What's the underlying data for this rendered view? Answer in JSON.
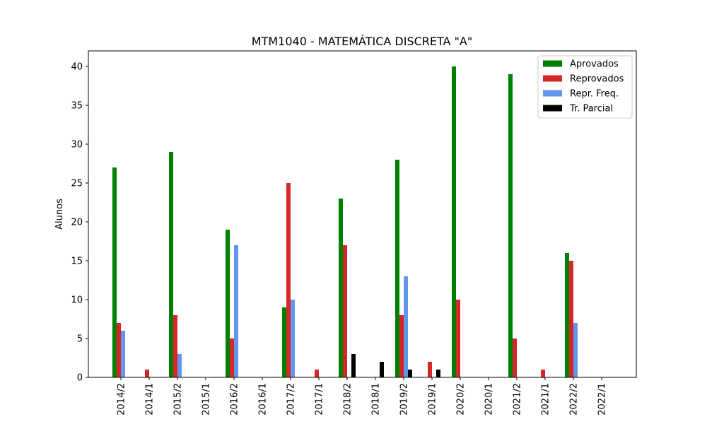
{
  "chart_data": {
    "type": "bar",
    "title": "MTM1040 - MATEMÁTICA DISCRETA \"A\"",
    "xlabel": "",
    "ylabel": "Alunos",
    "ylim": [
      0,
      42
    ],
    "yticks": [
      0,
      5,
      10,
      15,
      20,
      25,
      30,
      35,
      40
    ],
    "grid": false,
    "legend_position": "top-right",
    "categories": [
      "2014/2",
      "2014/1",
      "2015/2",
      "2015/1",
      "2016/2",
      "2016/1",
      "2017/2",
      "2017/1",
      "2018/2",
      "2018/1",
      "2019/2",
      "2019/1",
      "2020/2",
      "2020/1",
      "2021/2",
      "2021/1",
      "2022/2",
      "2022/1"
    ],
    "series": [
      {
        "name": "Aprovados",
        "color": "#008000",
        "values": [
          27,
          0,
          29,
          0,
          19,
          0,
          9,
          0,
          23,
          0,
          28,
          0,
          40,
          0,
          39,
          0,
          16,
          0
        ]
      },
      {
        "name": "Reprovados",
        "color": "#d62728",
        "values": [
          7,
          1,
          8,
          0,
          5,
          0,
          25,
          1,
          17,
          0,
          8,
          2,
          10,
          0,
          5,
          1,
          15,
          0
        ]
      },
      {
        "name": "Repr. Freq.",
        "color": "#6495ed",
        "values": [
          6,
          0,
          3,
          0,
          17,
          0,
          10,
          0,
          0,
          0,
          13,
          0,
          0,
          0,
          0,
          0,
          7,
          0
        ]
      },
      {
        "name": "Tr. Parcial",
        "color": "#000000",
        "values": [
          0,
          0,
          0,
          0,
          0,
          0,
          0,
          0,
          3,
          2,
          1,
          1,
          0,
          0,
          0,
          0,
          0,
          0
        ]
      }
    ]
  }
}
